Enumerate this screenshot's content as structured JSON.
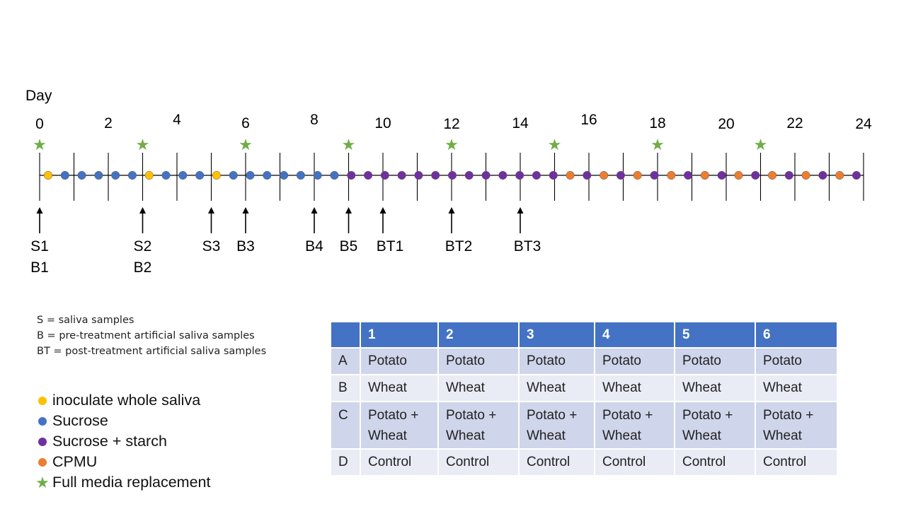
{
  "timeline": {
    "axis_label": "Day",
    "day_labels": [
      "0",
      "2",
      "4",
      "6",
      "8",
      "10",
      "12",
      "14",
      "16",
      "18",
      "20",
      "22",
      "24"
    ],
    "ticks": 24,
    "dots": [
      "inoculate",
      "sucrose",
      "sucrose",
      "sucrose",
      "sucrose",
      "sucrose",
      "inoculate",
      "sucrose",
      "sucrose",
      "sucrose",
      "inoculate",
      "sucrose",
      "sucrose",
      "sucrose",
      "sucrose",
      "sucrose",
      "sucrose",
      "sucrose",
      "starch",
      "starch",
      "starch",
      "starch",
      "starch",
      "starch",
      "starch",
      "starch",
      "starch",
      "starch",
      "starch",
      "starch",
      "starch",
      "cpmu",
      "starch",
      "cpmu",
      "starch",
      "cpmu",
      "starch",
      "cpmu",
      "starch",
      "cpmu",
      "starch",
      "cpmu",
      "starch",
      "cpmu",
      "starch",
      "cpmu",
      "starch",
      "cpmu",
      "starch"
    ],
    "media_replacement_days": [
      0,
      3,
      6,
      9,
      12,
      15,
      18,
      21
    ],
    "samples": [
      {
        "day": 0,
        "lines": [
          "S1",
          "B1"
        ]
      },
      {
        "day": 3,
        "lines": [
          "S2",
          "B2"
        ]
      },
      {
        "day": 5,
        "lines": [
          "S3"
        ]
      },
      {
        "day": 6,
        "lines": [
          "B3"
        ]
      },
      {
        "day": 8,
        "lines": [
          "B4"
        ]
      },
      {
        "day": 9,
        "lines": [
          "B5"
        ]
      },
      {
        "day": 10,
        "lines": [
          "BT1"
        ]
      },
      {
        "day": 12,
        "lines": [
          "BT2"
        ]
      },
      {
        "day": 14,
        "lines": [
          "BT3"
        ]
      }
    ]
  },
  "abbreviations": [
    "S = saliva samples",
    "B = pre-treatment artificial saliva samples",
    "BT = post-treatment artificial saliva samples"
  ],
  "legend": [
    {
      "key": "inoculate",
      "label": "inoculate whole saliva",
      "kind": "dot"
    },
    {
      "key": "sucrose",
      "label": "Sucrose",
      "kind": "dot"
    },
    {
      "key": "starch",
      "label": "Sucrose + starch",
      "kind": "dot"
    },
    {
      "key": "cpmu",
      "label": "CPMU",
      "kind": "dot"
    },
    {
      "key": "media",
      "label": "Full media replacement",
      "kind": "star"
    }
  ],
  "colors": {
    "inoculate": "#ffc000",
    "sucrose": "#4472c4",
    "starch": "#7030a0",
    "cpmu": "#ed7d31",
    "media": "#70ad47",
    "table_header": "#4472c4"
  },
  "plate_table": {
    "columns": [
      "",
      "1",
      "2",
      "3",
      "4",
      "5",
      "6"
    ],
    "rows": [
      {
        "id": "A",
        "cells": [
          "Potato",
          "Potato",
          "Potato",
          "Potato",
          "Potato",
          "Potato"
        ]
      },
      {
        "id": "B",
        "cells": [
          "Wheat",
          "Wheat",
          "Wheat",
          "Wheat",
          "Wheat",
          "Wheat"
        ]
      },
      {
        "id": "C",
        "cells": [
          "Potato + Wheat",
          "Potato + Wheat",
          "Potato + Wheat",
          "Potato + Wheat",
          "Potato + Wheat",
          "Potato + Wheat"
        ]
      },
      {
        "id": "D",
        "cells": [
          "Control",
          "Control",
          "Control",
          "Control",
          "Control",
          "Control"
        ]
      }
    ]
  }
}
